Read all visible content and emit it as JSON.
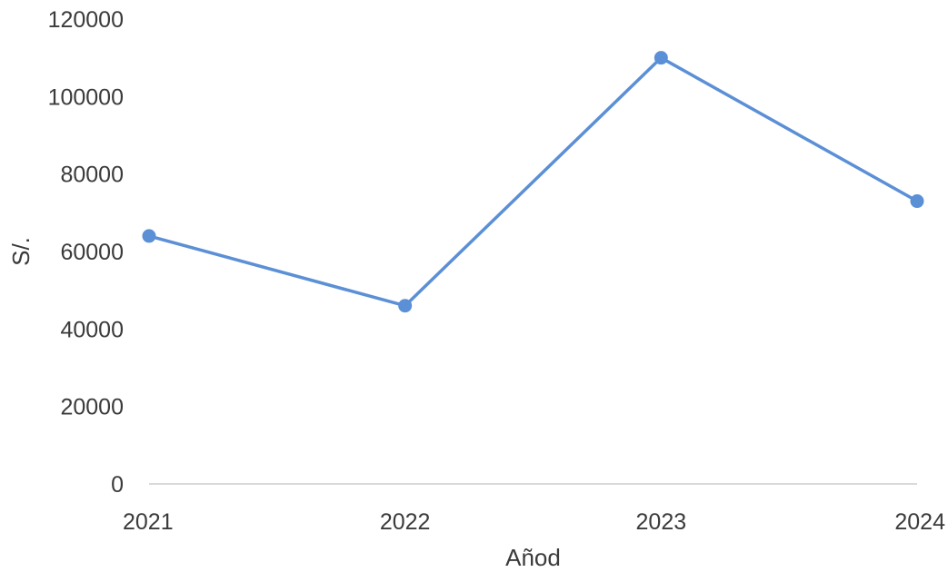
{
  "chart_data": {
    "type": "line",
    "title": "",
    "xlabel": "Añod",
    "ylabel": "S/.",
    "categories": [
      "2021",
      "2022",
      "2023",
      "2024"
    ],
    "series": [
      {
        "values": [
          64000,
          46000,
          110000,
          73000
        ]
      }
    ],
    "ylim": [
      0,
      120000
    ],
    "yticks": [
      "0",
      "20000",
      "40000",
      "60000",
      "80000",
      "100000",
      "120000"
    ],
    "grid": false,
    "legend": "none",
    "colors": {
      "series": "#5b8fd6",
      "axis": "#d9d9d9",
      "text": "#3b3b3b"
    }
  }
}
